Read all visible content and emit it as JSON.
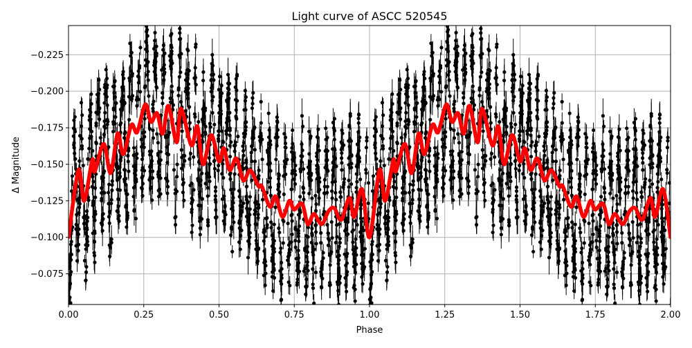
{
  "chart_data": {
    "type": "scatter",
    "title": "Light curve of ASCC 520545",
    "xlabel": "Phase",
    "ylabel": "Δ Magnitude",
    "xlim": [
      0.0,
      2.0
    ],
    "ylim": [
      -0.054,
      -0.245
    ],
    "y_inverted": true,
    "grid": true,
    "x_ticks": [
      "0.00",
      "0.25",
      "0.50",
      "0.75",
      "1.00",
      "1.25",
      "1.50",
      "1.75",
      "2.00"
    ],
    "x_tick_values": [
      0,
      0.25,
      0.5,
      0.75,
      1.0,
      1.25,
      1.5,
      1.75,
      2.0
    ],
    "y_ticks": [
      "−0.225",
      "−0.200",
      "−0.175",
      "−0.150",
      "−0.125",
      "−0.100",
      "−0.075"
    ],
    "y_tick_values": [
      -0.225,
      -0.2,
      -0.175,
      -0.15,
      -0.125,
      -0.1,
      -0.075
    ],
    "colors": {
      "observations": "#000000",
      "fit": "#ff0000",
      "grid": "#b0b0b0"
    },
    "series": [
      {
        "kind": "errorbar-scatter",
        "color": "#000000"
      },
      {
        "kind": "line",
        "color": "#ff0000",
        "x": [
          0.0,
          0.033,
          0.052,
          0.079,
          0.087,
          0.117,
          0.14,
          0.163,
          0.182,
          0.209,
          0.228,
          0.255,
          0.274,
          0.294,
          0.313,
          0.332,
          0.359,
          0.374,
          0.408,
          0.428,
          0.447,
          0.474,
          0.5,
          0.516,
          0.535,
          0.558,
          0.581,
          0.604,
          0.631,
          0.642,
          0.669,
          0.688,
          0.711,
          0.734,
          0.749,
          0.776,
          0.795,
          0.815,
          0.841,
          0.864,
          0.883,
          0.906,
          0.933,
          0.949,
          0.975,
          1.0,
          1.033,
          1.052,
          1.079,
          1.087,
          1.117,
          1.14,
          1.163,
          1.182,
          1.209,
          1.228,
          1.255,
          1.274,
          1.294,
          1.313,
          1.332,
          1.359,
          1.374,
          1.408,
          1.428,
          1.447,
          1.474,
          1.5,
          1.516,
          1.535,
          1.558,
          1.581,
          1.604,
          1.631,
          1.642,
          1.669,
          1.688,
          1.711,
          1.734,
          1.749,
          1.776,
          1.795,
          1.815,
          1.841,
          1.864,
          1.883,
          1.906,
          1.933,
          1.949,
          1.975,
          2.0
        ],
        "y": [
          -0.1,
          -0.146,
          -0.125,
          -0.153,
          -0.145,
          -0.164,
          -0.144,
          -0.171,
          -0.157,
          -0.177,
          -0.172,
          -0.191,
          -0.179,
          -0.185,
          -0.171,
          -0.19,
          -0.165,
          -0.188,
          -0.163,
          -0.176,
          -0.15,
          -0.17,
          -0.152,
          -0.161,
          -0.146,
          -0.154,
          -0.139,
          -0.146,
          -0.135,
          -0.135,
          -0.121,
          -0.128,
          -0.114,
          -0.125,
          -0.119,
          -0.123,
          -0.109,
          -0.116,
          -0.109,
          -0.118,
          -0.12,
          -0.112,
          -0.127,
          -0.114,
          -0.133,
          -0.1,
          -0.146,
          -0.125,
          -0.153,
          -0.145,
          -0.164,
          -0.144,
          -0.171,
          -0.157,
          -0.177,
          -0.172,
          -0.191,
          -0.179,
          -0.185,
          -0.171,
          -0.19,
          -0.165,
          -0.188,
          -0.163,
          -0.176,
          -0.15,
          -0.17,
          -0.152,
          -0.161,
          -0.146,
          -0.154,
          -0.139,
          -0.146,
          -0.135,
          -0.135,
          -0.121,
          -0.128,
          -0.114,
          -0.125,
          -0.119,
          -0.123,
          -0.109,
          -0.116,
          -0.109,
          -0.118,
          -0.12,
          -0.112,
          -0.127,
          -0.114,
          -0.133,
          -0.1
        ]
      }
    ]
  }
}
